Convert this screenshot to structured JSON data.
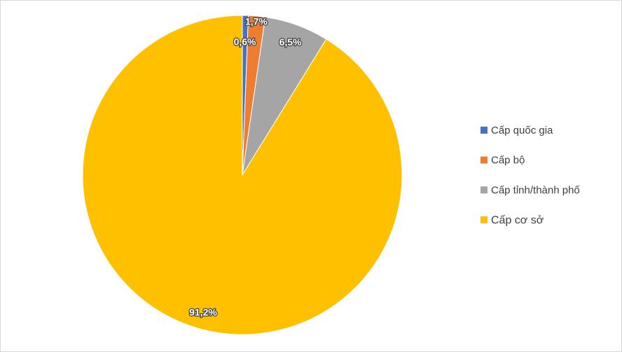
{
  "chart_data": {
    "type": "pie",
    "categories": [
      "Cấp quốc gia",
      "Cấp bộ",
      "Cấp tỉnh/thành phố",
      "Cấp cơ sở"
    ],
    "values": [
      0.6,
      1.7,
      6.5,
      91.2
    ],
    "value_labels": [
      "0,6%",
      "1,7%",
      "6,5%",
      "91,2%"
    ],
    "colors": [
      "#4472c4",
      "#ed7d31",
      "#a5a5a5",
      "#ffc000"
    ],
    "legend": "right"
  }
}
